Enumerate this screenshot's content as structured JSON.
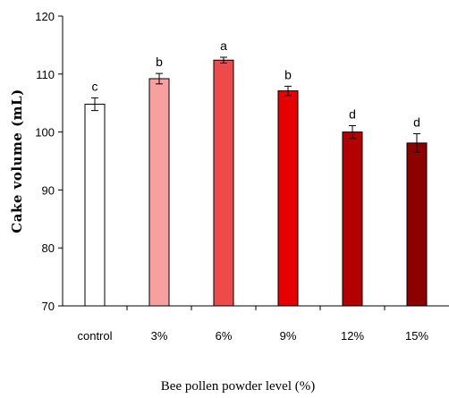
{
  "chart_data": {
    "type": "bar",
    "categories": [
      "control",
      "3%",
      "6%",
      "9%",
      "12%",
      "15%"
    ],
    "values": [
      104.8,
      109.2,
      112.4,
      107.1,
      100.0,
      98.1
    ],
    "errors": [
      1.1,
      0.9,
      0.5,
      0.8,
      1.1,
      1.6
    ],
    "significance": [
      "c",
      "b",
      "a",
      "b",
      "d",
      "d"
    ],
    "bar_colors": [
      "#ffffff",
      "#f8a0a0",
      "#ef4a4a",
      "#e60000",
      "#b30000",
      "#8c0000"
    ],
    "ylabel": "Cake volume (mL)",
    "xlabel": "Bee pollen powder level (%)",
    "ylim": [
      70,
      120
    ],
    "yticks": [
      70,
      80,
      90,
      100,
      110,
      120
    ],
    "grid": false
  }
}
